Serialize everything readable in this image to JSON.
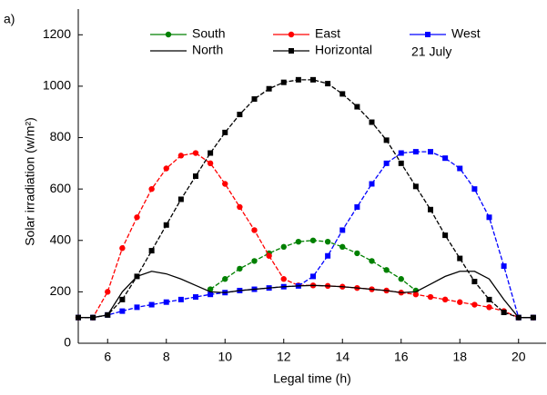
{
  "chart_data": {
    "type": "line",
    "panel_label": "a)",
    "annotation": "21 July",
    "x_label": "Legal time (h)",
    "y_label": "Solar irradiation (w/m²)",
    "xlim": [
      5,
      21
    ],
    "ylim": [
      0,
      1300
    ],
    "xticks": [
      6,
      8,
      10,
      12,
      14,
      16,
      18,
      20
    ],
    "yticks": [
      0,
      200,
      400,
      600,
      800,
      1000,
      1200
    ],
    "x": [
      5,
      5.5,
      6,
      6.5,
      7,
      7.5,
      8,
      8.5,
      9,
      9.5,
      10,
      10.5,
      11,
      11.5,
      12,
      12.5,
      13,
      13.5,
      14,
      14.5,
      15,
      15.5,
      16,
      16.5,
      17,
      17.5,
      18,
      18.5,
      19,
      19.5,
      20,
      20.5
    ],
    "series": [
      {
        "name": "South",
        "color": "#008000",
        "marker": "circle",
        "values": [
          null,
          null,
          null,
          null,
          null,
          null,
          null,
          null,
          null,
          210,
          250,
          290,
          320,
          350,
          375,
          395,
          400,
          395,
          375,
          350,
          320,
          285,
          250,
          205,
          null,
          null,
          null,
          null,
          null,
          null,
          null,
          null
        ]
      },
      {
        "name": "East",
        "color": "#ff0000",
        "marker": "circle",
        "values": [
          100,
          100,
          200,
          370,
          490,
          600,
          680,
          730,
          740,
          700,
          620,
          530,
          440,
          340,
          250,
          225,
          225,
          223,
          220,
          215,
          210,
          205,
          197,
          190,
          180,
          170,
          160,
          150,
          140,
          125,
          100,
          100
        ]
      },
      {
        "name": "West",
        "color": "#0000ff",
        "marker": "square",
        "values": [
          100,
          100,
          110,
          125,
          140,
          150,
          160,
          170,
          180,
          190,
          197,
          205,
          210,
          215,
          220,
          223,
          260,
          340,
          440,
          530,
          620,
          700,
          740,
          745,
          745,
          720,
          680,
          600,
          490,
          300,
          100,
          100
        ]
      },
      {
        "name": "North",
        "color": "#000000",
        "marker": "none",
        "values": [
          100,
          100,
          110,
          200,
          260,
          280,
          270,
          250,
          225,
          200,
          197,
          205,
          210,
          215,
          220,
          223,
          225,
          223,
          220,
          215,
          210,
          205,
          197,
          200,
          230,
          260,
          280,
          280,
          250,
          170,
          100,
          100
        ]
      },
      {
        "name": "Horizontal",
        "color": "#000000",
        "marker": "square",
        "values": [
          100,
          100,
          110,
          170,
          260,
          360,
          460,
          560,
          650,
          740,
          820,
          890,
          950,
          990,
          1015,
          1025,
          1025,
          1010,
          970,
          920,
          860,
          790,
          700,
          610,
          520,
          420,
          330,
          240,
          170,
          120,
          100,
          100
        ]
      }
    ]
  }
}
